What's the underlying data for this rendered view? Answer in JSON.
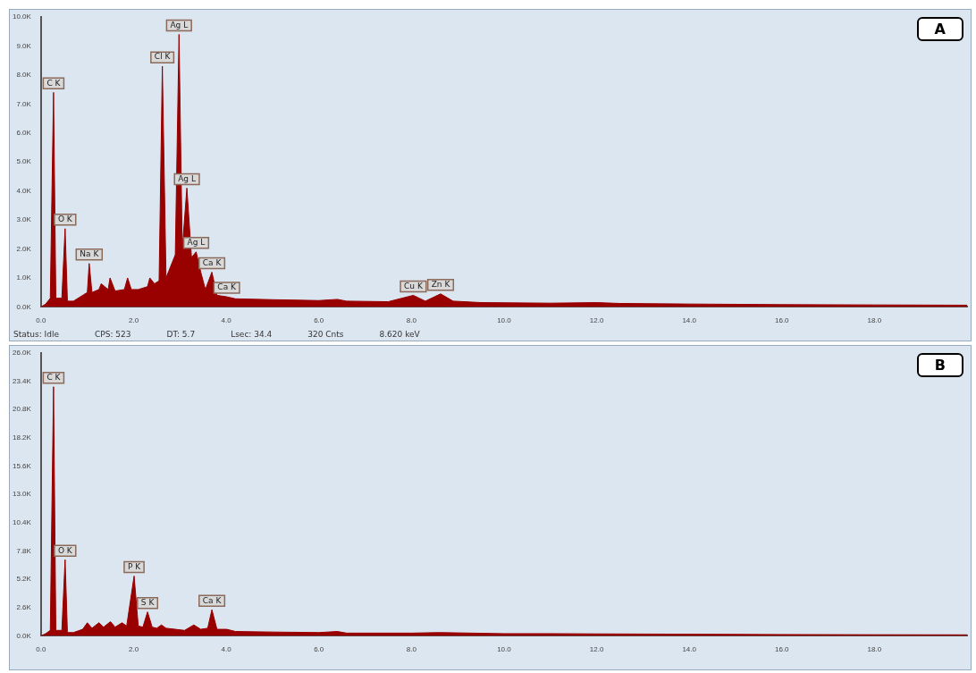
{
  "chart_data": [
    {
      "type": "area",
      "title": "A",
      "color": "#990000",
      "x": [
        0,
        0.1,
        0.2,
        0.27,
        0.32,
        0.45,
        0.52,
        0.57,
        0.7,
        0.9,
        1.0,
        1.04,
        1.1,
        1.25,
        1.3,
        1.45,
        1.49,
        1.6,
        1.8,
        1.87,
        1.95,
        2.1,
        2.3,
        2.35,
        2.45,
        2.55,
        2.62,
        2.7,
        2.8,
        2.9,
        2.98,
        3.05,
        3.15,
        3.25,
        3.35,
        3.45,
        3.55,
        3.69,
        3.8,
        4.01,
        4.2,
        5.0,
        6.0,
        6.4,
        6.6,
        7.5,
        8.04,
        8.3,
        8.63,
        8.9,
        9.5,
        11,
        12,
        12.5,
        14,
        16,
        18,
        20
      ],
      "values": [
        0,
        100,
        300,
        7400,
        300,
        300,
        2700,
        200,
        200,
        400,
        500,
        1500,
        500,
        600,
        800,
        600,
        1000,
        550,
        600,
        1000,
        600,
        600,
        700,
        1000,
        800,
        900,
        8300,
        1000,
        1400,
        1800,
        9400,
        2000,
        4100,
        1700,
        1900,
        1200,
        600,
        1200,
        400,
        350,
        280,
        250,
        220,
        260,
        200,
        180,
        400,
        200,
        450,
        200,
        150,
        130,
        150,
        120,
        100,
        80,
        70,
        60
      ],
      "xlim": [
        0,
        20
      ],
      "xticks": [
        {
          "value": 0,
          "label": "0.0"
        },
        {
          "value": 2,
          "label": "2.0"
        },
        {
          "value": 4,
          "label": "4.0"
        },
        {
          "value": 6,
          "label": "6.0"
        },
        {
          "value": 8,
          "label": "8.0"
        },
        {
          "value": 10,
          "label": "10.0"
        },
        {
          "value": 12,
          "label": "12.0"
        },
        {
          "value": 14,
          "label": "14.0"
        },
        {
          "value": 16,
          "label": "16.0"
        },
        {
          "value": 18,
          "label": "18.0"
        }
      ],
      "ylim": [
        0,
        10000
      ],
      "yticks": [
        {
          "value": 0,
          "label": "0.0K"
        },
        {
          "value": 1000,
          "label": "1.0K"
        },
        {
          "value": 2000,
          "label": "2.0K"
        },
        {
          "value": 3000,
          "label": "3.0K"
        },
        {
          "value": 4000,
          "label": "4.0K"
        },
        {
          "value": 5000,
          "label": "5.0K"
        },
        {
          "value": 6000,
          "label": "6.0K"
        },
        {
          "value": 7000,
          "label": "7.0K"
        },
        {
          "value": 8000,
          "label": "8.0K"
        },
        {
          "value": 9000,
          "label": "9.0K"
        },
        {
          "value": 10000,
          "label": "10.0K"
        }
      ],
      "annotations": [
        {
          "text": "C K",
          "x": 0.27,
          "y": 7400
        },
        {
          "text": "O K",
          "x": 0.52,
          "y": 2700
        },
        {
          "text": "Na K",
          "x": 1.04,
          "y": 1500
        },
        {
          "text": "Cl K",
          "x": 2.62,
          "y": 8300
        },
        {
          "text": "Ag L",
          "x": 2.98,
          "y": 9400
        },
        {
          "text": "Ag L",
          "x": 3.15,
          "y": 4100
        },
        {
          "text": "Ag L",
          "x": 3.35,
          "y": 1900
        },
        {
          "text": "Ca K",
          "x": 3.69,
          "y": 1200
        },
        {
          "text": "Ca K",
          "x": 4.01,
          "y": 350
        },
        {
          "text": "Cu K",
          "x": 8.04,
          "y": 400
        },
        {
          "text": "Zn K",
          "x": 8.63,
          "y": 450
        },
        "Status: Idle",
        "CPS: 523",
        "DT: 5.7",
        "Lsec: 34.4",
        "320 Cnts",
        "8.620 keV"
      ]
    },
    {
      "type": "area",
      "title": "B",
      "color": "#990000",
      "x": [
        0,
        0.1,
        0.2,
        0.27,
        0.32,
        0.45,
        0.52,
        0.57,
        0.7,
        0.9,
        1.0,
        1.1,
        1.25,
        1.35,
        1.5,
        1.6,
        1.75,
        1.85,
        2.01,
        2.1,
        2.2,
        2.3,
        2.4,
        2.5,
        2.6,
        2.7,
        2.9,
        3.1,
        3.3,
        3.45,
        3.6,
        3.69,
        3.8,
        4.01,
        4.2,
        5.0,
        6.0,
        6.4,
        6.6,
        8.0,
        8.6,
        10,
        11,
        12,
        14,
        16,
        18,
        20
      ],
      "values": [
        0,
        200,
        500,
        22900,
        500,
        500,
        7000,
        300,
        300,
        600,
        1200,
        700,
        1200,
        800,
        1300,
        800,
        1200,
        900,
        5500,
        900,
        800,
        2200,
        800,
        700,
        1000,
        700,
        600,
        500,
        1000,
        600,
        700,
        2400,
        600,
        600,
        400,
        350,
        300,
        400,
        250,
        250,
        300,
        200,
        200,
        180,
        150,
        120,
        100,
        90
      ],
      "xlim": [
        0,
        20
      ],
      "xticks": [
        {
          "value": 0,
          "label": "0.0"
        },
        {
          "value": 2,
          "label": "2.0"
        },
        {
          "value": 4,
          "label": "4.0"
        },
        {
          "value": 6,
          "label": "6.0"
        },
        {
          "value": 8,
          "label": "8.0"
        },
        {
          "value": 10,
          "label": "10.0"
        },
        {
          "value": 12,
          "label": "12.0"
        },
        {
          "value": 14,
          "label": "14.0"
        },
        {
          "value": 16,
          "label": "16.0"
        },
        {
          "value": 18,
          "label": "18.0"
        }
      ],
      "ylim": [
        0,
        26000
      ],
      "yticks": [
        {
          "value": 0,
          "label": "0.0K"
        },
        {
          "value": 2600,
          "label": "2.6K"
        },
        {
          "value": 5200,
          "label": "5.2K"
        },
        {
          "value": 7800,
          "label": "7.8K"
        },
        {
          "value": 10400,
          "label": "10.4K"
        },
        {
          "value": 13000,
          "label": "13.0K"
        },
        {
          "value": 15600,
          "label": "15.6K"
        },
        {
          "value": 18200,
          "label": "18.2K"
        },
        {
          "value": 20800,
          "label": "20.8K"
        },
        {
          "value": 23400,
          "label": "23.4K"
        },
        {
          "value": 26000,
          "label": "26.0K"
        }
      ],
      "annotations": [
        {
          "text": "C K",
          "x": 0.27,
          "y": 22900
        },
        {
          "text": "O K",
          "x": 0.52,
          "y": 7000
        },
        {
          "text": "P K",
          "x": 2.01,
          "y": 5500
        },
        {
          "text": "S K",
          "x": 2.3,
          "y": 2200
        },
        {
          "text": "Ca K",
          "x": 3.69,
          "y": 2400
        }
      ]
    }
  ]
}
